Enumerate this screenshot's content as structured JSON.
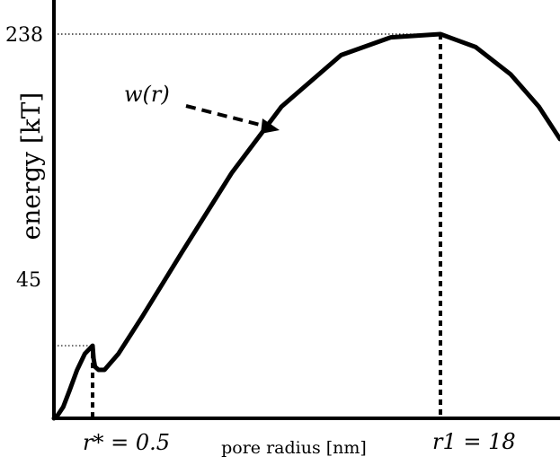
{
  "chart_data": {
    "type": "line",
    "ylabel": "energy [kT]",
    "xlabel": "pore radius [nm]",
    "yticks": [
      "238",
      "45"
    ],
    "xmarks": [
      "r* = 0.5",
      "r1 = 18"
    ],
    "annotation": "w(r)",
    "ylim": [
      0,
      238
    ],
    "grid": false,
    "series": [
      {
        "name": "w(r)",
        "points": [
          {
            "x": 0.0,
            "y": 0
          },
          {
            "x": 0.05,
            "y": 2
          },
          {
            "x": 0.12,
            "y": 7
          },
          {
            "x": 0.2,
            "y": 17
          },
          {
            "x": 0.3,
            "y": 30
          },
          {
            "x": 0.4,
            "y": 40
          },
          {
            "x": 0.5,
            "y": 45
          },
          {
            "x": 0.55,
            "y": 37
          },
          {
            "x": 0.62,
            "y": 32
          },
          {
            "x": 0.8,
            "y": 30
          },
          {
            "x": 1.1,
            "y": 30
          },
          {
            "x": 1.8,
            "y": 40
          },
          {
            "x": 3.0,
            "y": 63
          },
          {
            "x": 5.0,
            "y": 103
          },
          {
            "x": 7.5,
            "y": 152
          },
          {
            "x": 10.0,
            "y": 193
          },
          {
            "x": 13.0,
            "y": 225
          },
          {
            "x": 15.5,
            "y": 236
          },
          {
            "x": 18.0,
            "y": 238
          },
          {
            "x": 20.5,
            "y": 230
          },
          {
            "x": 23.0,
            "y": 213
          },
          {
            "x": 25.0,
            "y": 193
          },
          {
            "x": 26.5,
            "y": 173
          }
        ]
      }
    ]
  }
}
